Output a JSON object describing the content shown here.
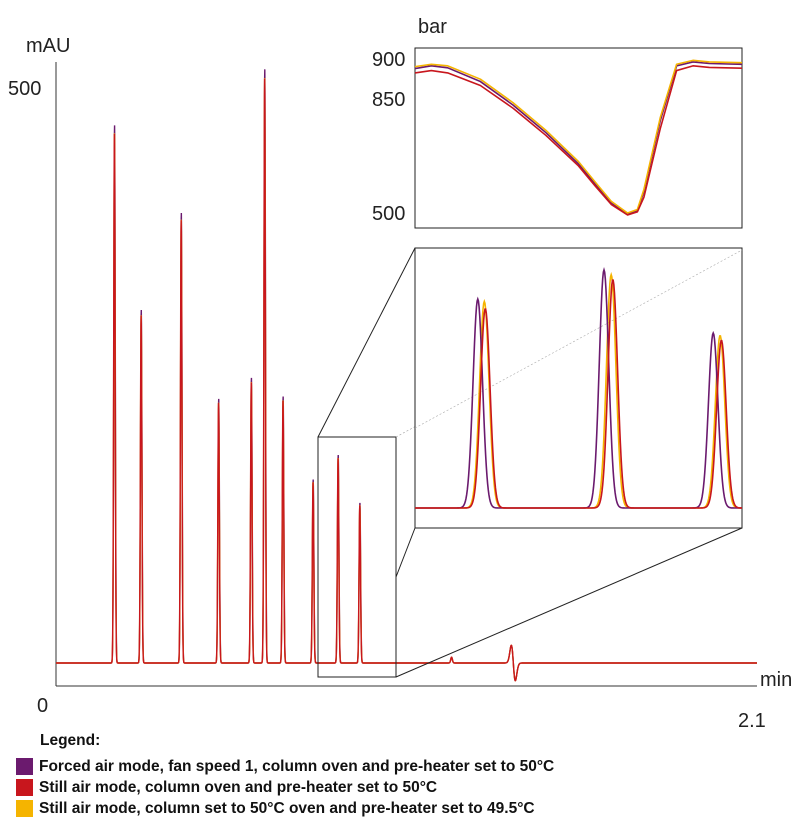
{
  "chart_data": [
    {
      "type": "line",
      "name_hint": "main chromatogram",
      "ylabel": "mAU",
      "xlabel": "min",
      "x_ticks": [
        "0",
        "2.1"
      ],
      "y_ticks": [
        "500"
      ],
      "xlim": [
        0,
        2.1
      ],
      "ylim": [
        0,
        500
      ],
      "peaks": [
        {
          "rt": 0.175,
          "height": 460
        },
        {
          "rt": 0.255,
          "height": 302
        },
        {
          "rt": 0.375,
          "height": 385
        },
        {
          "rt": 0.487,
          "height": 226
        },
        {
          "rt": 0.585,
          "height": 244
        },
        {
          "rt": 0.625,
          "height": 508
        },
        {
          "rt": 0.68,
          "height": 228
        },
        {
          "rt": 0.77,
          "height": 157
        },
        {
          "rt": 0.845,
          "height": 178
        },
        {
          "rt": 0.91,
          "height": 137
        }
      ],
      "baseline_features": [
        {
          "x": 1.185,
          "type": "blip",
          "size": 5
        },
        {
          "x": 1.37,
          "type": "disturbance",
          "size": 14
        }
      ],
      "zoom_box_x": [
        0.73,
        0.945
      ]
    },
    {
      "type": "line",
      "name_hint": "pressure trace",
      "ylabel": "bar",
      "y_ticks": [
        "900",
        "850",
        "500"
      ],
      "ylim": [
        500,
        900
      ],
      "series": [
        {
          "name": "Forced air mode, fan speed 1, column oven and pre-heater set to 50°C",
          "points": [
            [
              0,
              873
            ],
            [
              0.05,
              880
            ],
            [
              0.1,
              875
            ],
            [
              0.2,
              840
            ],
            [
              0.3,
              780
            ],
            [
              0.4,
              710
            ],
            [
              0.5,
              630
            ],
            [
              0.55,
              580
            ],
            [
              0.6,
              530
            ],
            [
              0.65,
              502
            ],
            [
              0.68,
              510
            ],
            [
              0.7,
              560
            ],
            [
              0.75,
              740
            ],
            [
              0.8,
              880
            ],
            [
              0.85,
              890
            ],
            [
              0.9,
              886
            ],
            [
              1,
              884
            ]
          ]
        },
        {
          "name": "Still air mode, column oven and pre-heater set to 50°C",
          "points": [
            [
              0,
              862
            ],
            [
              0.05,
              868
            ],
            [
              0.1,
              862
            ],
            [
              0.2,
              830
            ],
            [
              0.3,
              772
            ],
            [
              0.4,
              703
            ],
            [
              0.5,
              625
            ],
            [
              0.55,
              575
            ],
            [
              0.6,
              527
            ],
            [
              0.65,
              500
            ],
            [
              0.68,
              508
            ],
            [
              0.7,
              545
            ],
            [
              0.75,
              720
            ],
            [
              0.8,
              868
            ],
            [
              0.85,
              880
            ],
            [
              0.9,
              876
            ],
            [
              1,
              874
            ]
          ]
        },
        {
          "name": "Still air mode, column set to 50°C oven and pre-heater set to 49.5°C",
          "points": [
            [
              0,
              878
            ],
            [
              0.05,
              884
            ],
            [
              0.1,
              880
            ],
            [
              0.2,
              846
            ],
            [
              0.3,
              786
            ],
            [
              0.4,
              716
            ],
            [
              0.5,
              636
            ],
            [
              0.55,
              585
            ],
            [
              0.6,
              535
            ],
            [
              0.65,
              505
            ],
            [
              0.68,
              514
            ],
            [
              0.7,
              565
            ],
            [
              0.75,
              748
            ],
            [
              0.8,
              884
            ],
            [
              0.85,
              894
            ],
            [
              0.9,
              890
            ],
            [
              1,
              888
            ]
          ]
        }
      ]
    },
    {
      "type": "line",
      "name_hint": "zoomed peaks",
      "peaks": [
        {
          "offsets": [
            0.192,
            0.215,
            0.212
          ],
          "heights": [
            0.86,
            0.82,
            0.85
          ]
        },
        {
          "offsets": [
            0.578,
            0.605,
            0.6
          ],
          "heights": [
            0.98,
            0.94,
            0.96
          ]
        },
        {
          "offsets": [
            0.912,
            0.937,
            0.933
          ],
          "heights": [
            0.72,
            0.69,
            0.71
          ]
        }
      ]
    }
  ],
  "series_colors": [
    "#6b1a6e",
    "#c8161d",
    "#f5b400"
  ],
  "legend": {
    "title": "Legend:",
    "items": [
      {
        "label": "Forced air mode, fan speed 1, column oven and pre-heater set to 50°C",
        "color": "#6b1a6e"
      },
      {
        "label": "Still air mode, column oven and pre-heater set to 50°C",
        "color": "#c8161d"
      },
      {
        "label": "Still air mode, column set to 50°C oven and pre-heater set to 49.5°C",
        "color": "#f5b400"
      }
    ]
  }
}
